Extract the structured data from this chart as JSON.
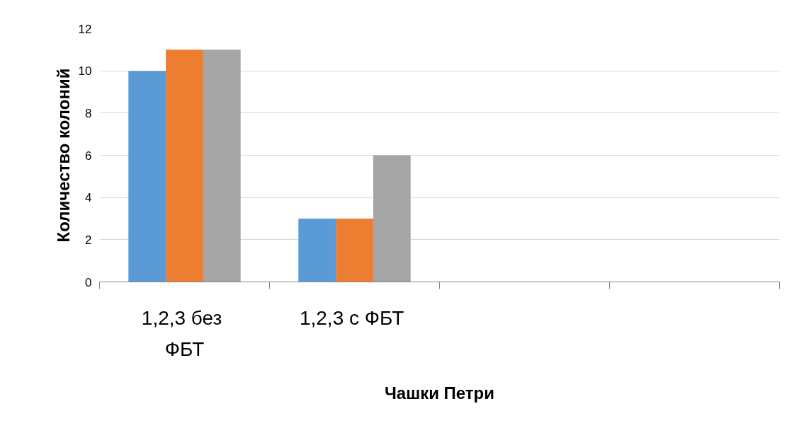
{
  "chart_data": {
    "type": "bar",
    "xlabel": "Чашки Петри",
    "ylabel": "Количество колоний",
    "categories": [
      "1,2,3  без ФБТ",
      "1,2,3  с ФБТ",
      null,
      null
    ],
    "series": [
      {
        "color": "#5b9bd5",
        "values": [
          10,
          3,
          null,
          null
        ]
      },
      {
        "color": "#ed7d31",
        "values": [
          11,
          3,
          null,
          null
        ]
      },
      {
        "color": "#a5a5a5",
        "values": [
          11,
          6,
          null,
          null
        ]
      }
    ],
    "ylim": [
      0,
      12
    ],
    "yticks": [
      0,
      2,
      4,
      6,
      8,
      10,
      12
    ],
    "grid": "y"
  }
}
